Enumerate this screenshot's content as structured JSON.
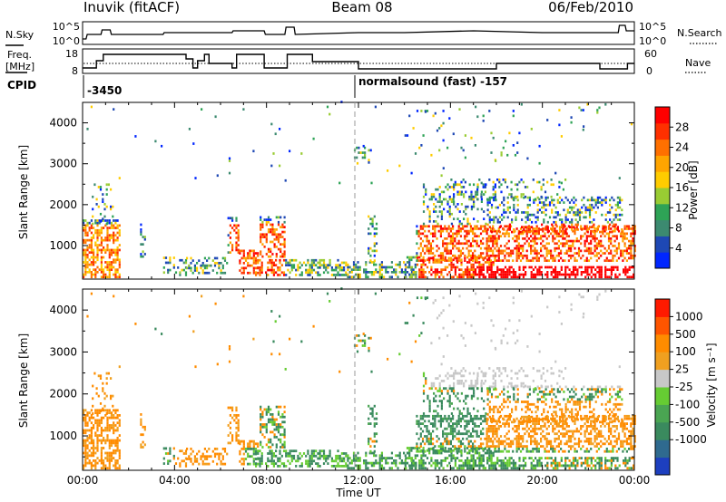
{
  "header": {
    "station": "Inuvik  (fitACF)",
    "beam": "Beam 08",
    "date": "06/Feb/2010"
  },
  "summary": {
    "nsky_label": "N.Sky",
    "nsky_ticks": [
      "10^5",
      "10^0"
    ],
    "nsearch_label": "N.Search",
    "nsearch_ticks": [
      "10^5",
      "10^0"
    ],
    "freq_label_1": "Freq.",
    "freq_label_2": "[MHz]",
    "freq_ticks": [
      "18",
      "8"
    ],
    "nave_label": "Nave",
    "nave_ticks": [
      "60",
      "0"
    ],
    "cpid_label": "CPID",
    "cpid_entries": [
      {
        "time_h": 0.0,
        "text": "-3450"
      },
      {
        "time_h": 12.0,
        "text": "normalsound (fast) -157"
      }
    ]
  },
  "chart_data": [
    {
      "type": "heatmap",
      "title": "",
      "ylabel": "Slant Range [km]",
      "xlabel": "Time UT",
      "x_ticks": [
        "00:00",
        "04:00",
        "08:00",
        "12:00",
        "16:00",
        "20:00",
        "00:00"
      ],
      "x_range_h": [
        0,
        24
      ],
      "y_ticks": [
        1000,
        2000,
        3000,
        4000
      ],
      "y_range_km": [
        180,
        4500
      ],
      "colorbar": {
        "label": "Power [dB]",
        "range": [
          0,
          32
        ],
        "ticks": [
          4,
          8,
          12,
          16,
          20,
          24,
          28
        ],
        "colors": [
          "#0026ff",
          "#1e48b4",
          "#3c8a70",
          "#2ea356",
          "#99cc33",
          "#ffcc00",
          "#ffa500",
          "#ff7000",
          "#ff3000",
          "#ff0000"
        ]
      }
    },
    {
      "type": "heatmap",
      "title": "",
      "ylabel": "Slant Range [km]",
      "xlabel": "Time UT",
      "x_ticks": [
        "00:00",
        "04:00",
        "08:00",
        "12:00",
        "16:00",
        "20:00",
        "00:00"
      ],
      "x_range_h": [
        0,
        24
      ],
      "y_ticks": [
        1000,
        2000,
        3000,
        4000
      ],
      "y_range_km": [
        180,
        4500
      ],
      "colorbar": {
        "label": "Velocity  [m s⁻¹]",
        "tick_labels": [
          "1000",
          "500",
          "100",
          "25",
          "-25",
          "-100",
          "-500",
          "-1000"
        ],
        "colors": [
          "#1d3fbf",
          "#2f6a8f",
          "#3a8a5e",
          "#4aa552",
          "#66cc33",
          "#c8c8c8",
          "#f0a020",
          "#ff8c00",
          "#ff5500",
          "#ff1a00"
        ]
      }
    }
  ]
}
